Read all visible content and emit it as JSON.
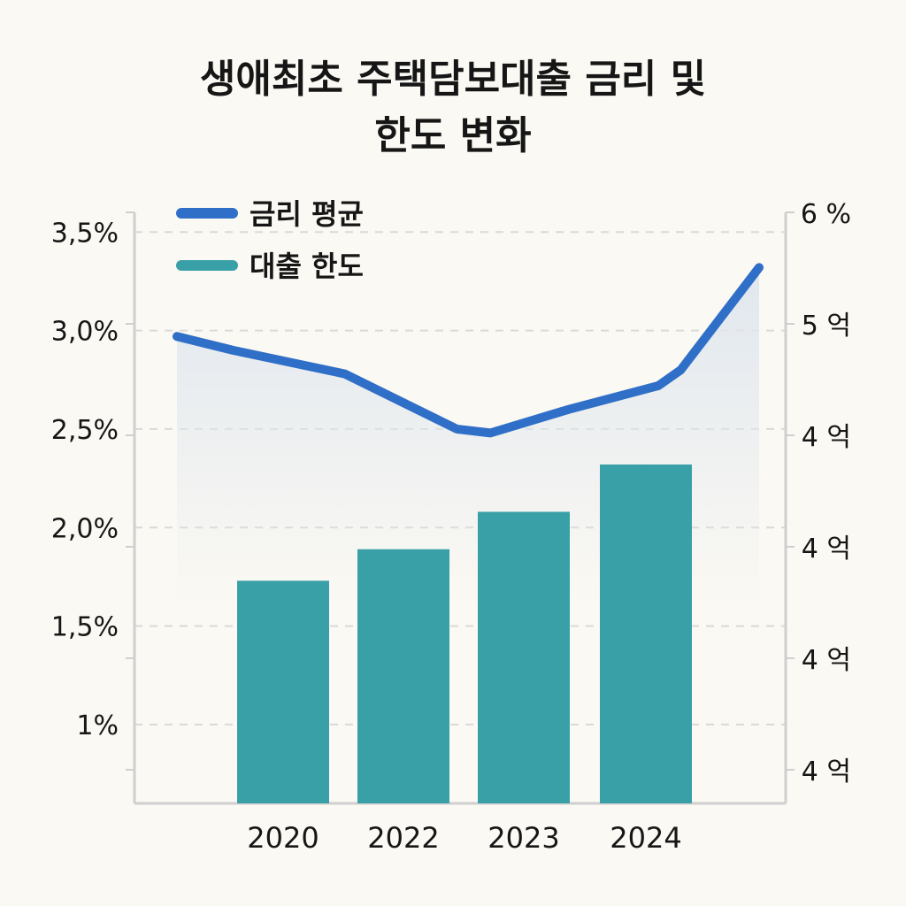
{
  "title_line1": "생애최초 주택담보대출 금리 및",
  "title_line2": "한도 변화",
  "colors": {
    "line": "#2f6fc7",
    "bar": "#3aa0a8",
    "area": "#dfe6ee",
    "grid": "#d9d9d9",
    "axis": "#cfcfcf"
  },
  "chart_data": {
    "type": "bar",
    "categories": [
      "2020",
      "2022",
      "2023",
      "2024"
    ],
    "series": [
      {
        "name": "금리 평균",
        "type": "line",
        "axis": "left",
        "x": [
          2019.5,
          2020,
          2021,
          2022,
          2022.3,
          2023,
          2023.8,
          2024,
          2024.7
        ],
        "values": [
          2.97,
          2.9,
          2.78,
          2.5,
          2.48,
          2.6,
          2.72,
          2.8,
          3.32
        ]
      },
      {
        "name": "대출 한도",
        "type": "bar",
        "axis": "right",
        "values": [
          1.73,
          1.89,
          2.08,
          2.32
        ]
      }
    ],
    "left_axis": {
      "ticks": [
        3.5,
        3.0,
        2.5,
        2.0,
        1.5,
        1.0
      ],
      "tick_labels": [
        "3,5%",
        "3,0%",
        "2,5%",
        "2,0%",
        "1,5%",
        "1%"
      ],
      "ylim": [
        0.6,
        3.6
      ]
    },
    "right_axis": {
      "tick_labels": [
        "6 %",
        "5 억",
        "4 억",
        "4 억",
        "4 억",
        "4 억"
      ]
    },
    "legend": "top-left",
    "grid": true
  }
}
